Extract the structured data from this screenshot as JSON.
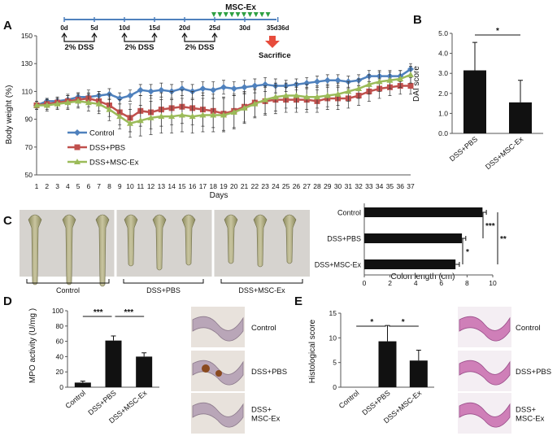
{
  "colors": {
    "control": "#4f81bd",
    "pbs": "#c0504d",
    "ex": "#9bbb59",
    "arrow": "#e74c3c",
    "tri": "#2ea043",
    "bar": "#111111"
  },
  "panel_labels": {
    "a": "A",
    "b": "B",
    "c": "C",
    "d": "D",
    "e": "E"
  },
  "timeline": {
    "title": "MSC-Ex",
    "ticks": [
      {
        "label": "0d",
        "x": 0
      },
      {
        "label": "5d",
        "x": 5
      },
      {
        "label": "10d",
        "x": 10
      },
      {
        "label": "15d",
        "x": 15
      },
      {
        "label": "20d",
        "x": 20
      },
      {
        "label": "25d",
        "x": 25
      },
      {
        "label": "30d",
        "x": 30
      },
      {
        "label": "35d36d",
        "x": 35.5
      }
    ],
    "dss": [
      {
        "label": "2% DSS",
        "from": 0,
        "to": 5
      },
      {
        "label": "2% DSS",
        "from": 10,
        "to": 15
      },
      {
        "label": "2% DSS",
        "from": 20,
        "to": 25
      }
    ],
    "sacrifice": "Sacrifice",
    "triangle_count": 10
  },
  "chart_data": [
    {
      "id": "A",
      "type": "line",
      "xlabel": "Days",
      "ylabel": "Body  weight (%)",
      "ylim": [
        50,
        150
      ],
      "yticks": [
        50,
        70,
        90,
        110,
        130,
        150
      ],
      "x": [
        1,
        2,
        3,
        4,
        5,
        6,
        7,
        8,
        9,
        10,
        11,
        12,
        13,
        14,
        15,
        16,
        17,
        18,
        19,
        20,
        21,
        22,
        23,
        24,
        25,
        26,
        27,
        28,
        29,
        30,
        31,
        32,
        33,
        34,
        35,
        36,
        37
      ],
      "series": [
        {
          "name": "Control",
          "color": "#4f81bd",
          "marker": "diamond",
          "values": [
            100,
            103,
            103,
            104,
            106,
            106,
            107,
            108,
            105,
            107,
            111,
            110,
            111,
            110,
            112,
            110,
            112,
            111,
            113,
            112,
            113,
            114,
            115,
            114,
            114,
            115,
            116,
            117,
            118,
            118,
            117,
            118,
            121,
            121,
            121,
            121,
            126
          ],
          "errors": [
            2,
            2,
            2,
            3,
            3,
            3,
            3,
            4,
            4,
            4,
            4,
            5,
            5,
            5,
            5,
            5,
            5,
            6,
            5,
            5,
            5,
            5,
            5,
            5,
            4,
            4,
            4,
            4,
            4,
            4,
            4,
            4,
            4,
            4,
            4,
            4,
            4
          ]
        },
        {
          "name": "DSS+PBS",
          "color": "#c0504d",
          "marker": "square",
          "values": [
            100,
            101,
            102,
            103,
            104,
            105,
            103,
            100,
            95,
            91,
            96,
            95,
            97,
            98,
            99,
            98,
            97,
            96,
            94,
            96,
            99,
            102,
            103,
            104,
            104,
            104,
            104,
            103,
            105,
            105,
            105,
            107,
            110,
            112,
            113,
            114,
            114
          ],
          "errors": [
            3,
            4,
            4,
            5,
            5,
            6,
            7,
            8,
            9,
            10,
            11,
            12,
            12,
            12,
            12,
            12,
            12,
            12,
            12,
            12,
            11,
            10,
            10,
            10,
            9,
            9,
            9,
            8,
            8,
            8,
            7,
            7,
            7,
            7,
            6,
            6,
            6
          ]
        },
        {
          "name": "DSS+MSC-Ex",
          "color": "#9bbb59",
          "marker": "triangle",
          "values": [
            100,
            100,
            101,
            102,
            103,
            102,
            101,
            97,
            92,
            87,
            89,
            91,
            92,
            92,
            93,
            92,
            93,
            93,
            93,
            95,
            98,
            101,
            104,
            106,
            107,
            107,
            106,
            106,
            107,
            108,
            110,
            112,
            115,
            117,
            118,
            119,
            122
          ],
          "errors": [
            3,
            4,
            4,
            5,
            5,
            6,
            7,
            8,
            9,
            10,
            11,
            12,
            12,
            12,
            12,
            12,
            12,
            12,
            12,
            12,
            11,
            10,
            10,
            10,
            9,
            9,
            9,
            8,
            8,
            8,
            7,
            7,
            7,
            7,
            6,
            6,
            6
          ]
        }
      ]
    },
    {
      "id": "B",
      "type": "bar",
      "ylabel": "DAI score",
      "categories": [
        "DSS+PBS",
        "DSS+MSC-Ex"
      ],
      "values": [
        3.15,
        1.55
      ],
      "errors": [
        1.4,
        1.1
      ],
      "ylim": [
        0,
        5
      ],
      "yticks": [
        "0.0",
        "1.0",
        "2.0",
        "3.0",
        "4.0",
        "5.0"
      ],
      "significance": "*"
    },
    {
      "id": "C",
      "type": "bar",
      "orientation": "horizontal",
      "xlabel": "Colon length (cm)",
      "categories": [
        "Control",
        "DSS+PBS",
        "DSS+MSC-Ex"
      ],
      "values": [
        9.2,
        7.6,
        7.1
      ],
      "errors": [
        0.3,
        0.3,
        0.3
      ],
      "xlim": [
        0,
        10
      ],
      "xticks": [
        "0",
        "2",
        "4",
        "6",
        "8",
        "10"
      ],
      "significance": [
        {
          "label": "***",
          "pair": "Control vs DSS+PBS"
        },
        {
          "label": "*",
          "pair": "DSS+PBS vs DSS+MSC-Ex"
        },
        {
          "label": "**",
          "pair": "Control vs DSS+MSC-Ex"
        }
      ]
    },
    {
      "id": "D",
      "type": "bar",
      "ylabel": "MPO activity  (U/mg )",
      "categories": [
        "Control",
        "DSS+PBS",
        "DSS+MSC-Ex"
      ],
      "values": [
        6,
        61,
        40
      ],
      "errors": [
        2,
        6,
        5
      ],
      "ylim": [
        0,
        100
      ],
      "yticks": [
        "0",
        "20",
        "40",
        "60",
        "80",
        "100"
      ],
      "significance": [
        {
          "label": "***"
        },
        {
          "label": "***"
        }
      ]
    },
    {
      "id": "E",
      "type": "bar",
      "ylabel": "Histological  score",
      "categories": [
        "Control",
        "DSS+PBS",
        "DSS+MSC-Ex"
      ],
      "values": [
        0,
        9.3,
        5.4
      ],
      "errors": [
        0,
        3.2,
        2.1
      ],
      "ylim": [
        0,
        15
      ],
      "yticks": [
        "0",
        "5",
        "10",
        "15"
      ],
      "significance": [
        {
          "label": "*"
        },
        {
          "label": "*"
        }
      ]
    }
  ],
  "photo_c_labels": [
    "Control",
    "DSS+PBS",
    "DSS+MSC-Ex"
  ],
  "histo_d_labels": [
    "Control",
    "DSS+PBS",
    "DSS+\nMSC-Ex"
  ],
  "histo_e_labels": [
    "Control",
    "DSS+PBS",
    "DSS+\nMSC-Ex"
  ]
}
